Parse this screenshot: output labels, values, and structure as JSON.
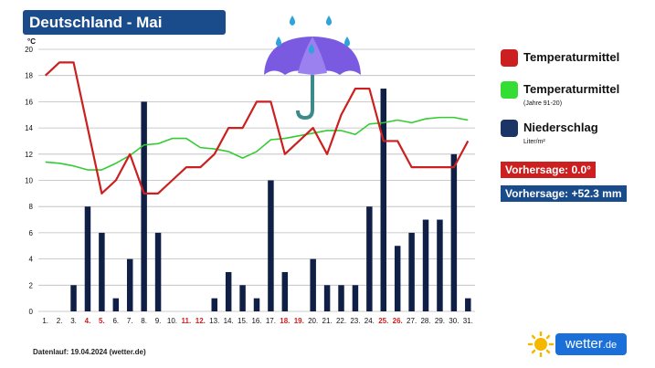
{
  "title": "Deutschland - Mai",
  "chart_data": {
    "type": "bar",
    "title": "Deutschland - Mai",
    "y_unit_label": "°C",
    "ylim": [
      0,
      20
    ],
    "yticks": [
      0,
      2,
      4,
      6,
      8,
      10,
      12,
      14,
      16,
      18,
      20
    ],
    "grid": true,
    "categories": [
      "1.",
      "2.",
      "3.",
      "4.",
      "5.",
      "6.",
      "7.",
      "8.",
      "9.",
      "10.",
      "11.",
      "12.",
      "13.",
      "14.",
      "15.",
      "16.",
      "17.",
      "18.",
      "19.",
      "20.",
      "21.",
      "22.",
      "23.",
      "24.",
      "25.",
      "26.",
      "27.",
      "28.",
      "29.",
      "30.",
      "31."
    ],
    "highlighted_days": [
      "4.",
      "5.",
      "11.",
      "12.",
      "18.",
      "19.",
      "25.",
      "26."
    ],
    "series": [
      {
        "name": "Niederschlag",
        "type": "bar",
        "color": "#0f1f45",
        "values": [
          0,
          0,
          2,
          8,
          6,
          1,
          4,
          16,
          6,
          0,
          0,
          0,
          1,
          3,
          2,
          1,
          10,
          3,
          0,
          4,
          2,
          2,
          2,
          8,
          17,
          5,
          6,
          7,
          7,
          12,
          1
        ]
      },
      {
        "name": "Temperaturmittel",
        "type": "line",
        "color": "#cc1f1f",
        "values": [
          18,
          19,
          19,
          14,
          9,
          10,
          12,
          9,
          9,
          10,
          11,
          11,
          12,
          14,
          14,
          16,
          16,
          12,
          13,
          14,
          12,
          15,
          17,
          17,
          13,
          13,
          11,
          11,
          11,
          11,
          13
        ]
      },
      {
        "name": "Temperaturmittel",
        "subtitle": "(Jahre 91-20)",
        "type": "line",
        "color": "#33cc33",
        "values": [
          11.4,
          11.3,
          11.1,
          10.8,
          10.8,
          11.3,
          11.9,
          12.7,
          12.8,
          13.2,
          13.2,
          12.5,
          12.4,
          12.2,
          11.7,
          12.2,
          13.1,
          13.2,
          13.4,
          13.6,
          13.8,
          13.8,
          13.5,
          14.3,
          14.4,
          14.6,
          14.4,
          14.7,
          14.8,
          14.8,
          14.6
        ]
      }
    ]
  },
  "legend": {
    "temp": {
      "label": "Temperaturmittel",
      "color": "#cc1f1f"
    },
    "norm": {
      "label": "Temperaturmittel",
      "sub": "(Jahre 91-20)",
      "color": "#33cc33"
    },
    "precip": {
      "label": "Niederschlag",
      "sub": "Liter/m²",
      "color": "#1a3566"
    }
  },
  "forecast": {
    "temp": {
      "text": "Vorhersage: 0.0°",
      "color": "#cc1f1f"
    },
    "precip": {
      "text": "Vorhersage: +52.3 mm",
      "color": "#1a4c8c"
    }
  },
  "footer": "Datenlauf: 19.04.2024 (wetter.de)",
  "logo": {
    "name": "wetter",
    "tld": ".de",
    "icon": "sun-icon"
  }
}
